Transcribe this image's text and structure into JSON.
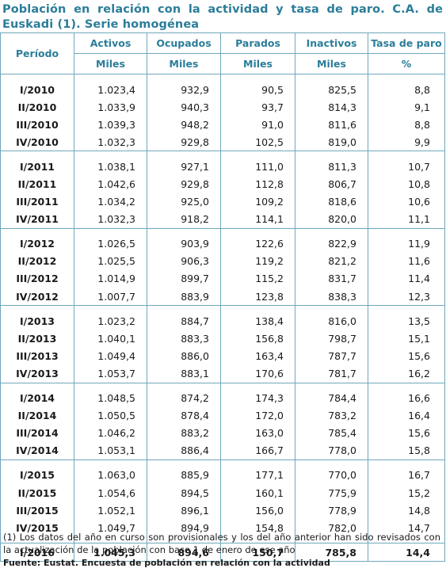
{
  "title": "Población en relación con la actividad y tasa de paro. C.A. de Euskadi (1). Serie homogénea",
  "headers": {
    "period": "Período",
    "columns": [
      "Activos",
      "Ocupados",
      "Parados",
      "Inactivos",
      "Tasa de paro"
    ],
    "units": [
      "Miles",
      "Miles",
      "Miles",
      "Miles",
      "%"
    ]
  },
  "groups": [
    [
      [
        "I/2010",
        "1.023,4",
        "932,9",
        "90,5",
        "825,5",
        "8,8"
      ],
      [
        "II/2010",
        "1.033,9",
        "940,3",
        "93,7",
        "814,3",
        "9,1"
      ],
      [
        "III/2010",
        "1.039,3",
        "948,2",
        "91,0",
        "811,6",
        "8,8"
      ],
      [
        "IV/2010",
        "1.032,3",
        "929,8",
        "102,5",
        "819,0",
        "9,9"
      ]
    ],
    [
      [
        "I/2011",
        "1.038,1",
        "927,1",
        "111,0",
        "811,3",
        "10,7"
      ],
      [
        "II/2011",
        "1.042,6",
        "929,8",
        "112,8",
        "806,7",
        "10,8"
      ],
      [
        "III/2011",
        "1.034,2",
        "925,0",
        "109,2",
        "818,6",
        "10,6"
      ],
      [
        "IV/2011",
        "1.032,3",
        "918,2",
        "114,1",
        "820,0",
        "11,1"
      ]
    ],
    [
      [
        "I/2012",
        "1.026,5",
        "903,9",
        "122,6",
        "822,9",
        "11,9"
      ],
      [
        "II/2012",
        "1.025,5",
        "906,3",
        "119,2",
        "821,2",
        "11,6"
      ],
      [
        "III/2012",
        "1.014,9",
        "899,7",
        "115,2",
        "831,7",
        "11,4"
      ],
      [
        "IV/2012",
        "1.007,7",
        "883,9",
        "123,8",
        "838,3",
        "12,3"
      ]
    ],
    [
      [
        "I/2013",
        "1.023,2",
        "884,7",
        "138,4",
        "816,0",
        "13,5"
      ],
      [
        "II/2013",
        "1.040,1",
        "883,3",
        "156,8",
        "798,7",
        "15,1"
      ],
      [
        "III/2013",
        "1.049,4",
        "886,0",
        "163,4",
        "787,7",
        "15,6"
      ],
      [
        "IV/2013",
        "1.053,7",
        "883,1",
        "170,6",
        "781,7",
        "16,2"
      ]
    ],
    [
      [
        "I/2014",
        "1.048,5",
        "874,2",
        "174,3",
        "784,4",
        "16,6"
      ],
      [
        "II/2014",
        "1.050,5",
        "878,4",
        "172,0",
        "783,2",
        "16,4"
      ],
      [
        "III/2014",
        "1.046,2",
        "883,2",
        "163,0",
        "785,4",
        "15,6"
      ],
      [
        "IV/2014",
        "1.053,1",
        "886,4",
        "166,7",
        "778,0",
        "15,8"
      ]
    ],
    [
      [
        "I/2015",
        "1.063,0",
        "885,9",
        "177,1",
        "770,0",
        "16,7"
      ],
      [
        "II/2015",
        "1.054,6",
        "894,5",
        "160,1",
        "775,9",
        "15,2"
      ],
      [
        "III/2015",
        "1.052,1",
        "896,1",
        "156,0",
        "778,9",
        "14,8"
      ],
      [
        "IV/2015",
        "1.049,7",
        "894,9",
        "154,8",
        "782,0",
        "14,7"
      ]
    ]
  ],
  "last_row": [
    "I/2016",
    "1.045,3",
    "894,6",
    "150,7",
    "785,8",
    "14,4"
  ],
  "note": "(1) Los datos del año en curso son provisionales y los del año anterior han sido revisados con la actualización de la población con base 1 de enero de ese año",
  "source": "Fuente: Eustat. Encuesta de población en relación con la actividad",
  "colors": {
    "accent": "#2b7d99",
    "border": "#6fa8bc",
    "text": "#1a1a1a"
  }
}
